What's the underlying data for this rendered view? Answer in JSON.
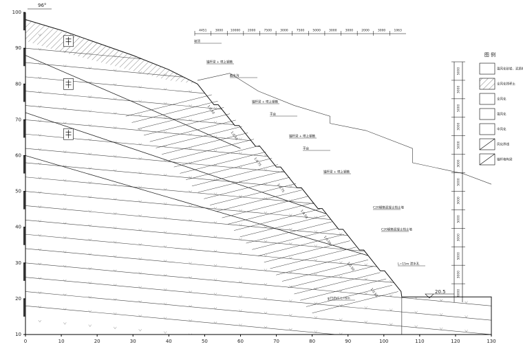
{
  "drawing": {
    "angle_label": "96°",
    "elevation_label": "20.5",
    "x_axis": {
      "ticks": [
        0,
        10,
        20,
        30,
        40,
        50,
        60,
        70,
        80,
        90,
        100,
        110,
        120,
        130
      ]
    },
    "y_axis": {
      "ticks": [
        10,
        20,
        30,
        40,
        50,
        60,
        70,
        80,
        90,
        100
      ]
    },
    "top_dimensions": [
      "4451",
      "3000",
      "10000",
      "2000",
      "7500",
      "3000",
      "7500",
      "5000",
      "3000",
      "3000",
      "2000",
      "3000",
      "1063"
    ],
    "right_dimensions": [
      "5000",
      "3000",
      "5000",
      "3000",
      "5000",
      "3000",
      "5000",
      "3000",
      "5000",
      "3000",
      "5000",
      "3000",
      "6000"
    ],
    "legend": {
      "title": "图 例",
      "items": [
        "强风化砂岩、泥质粉砂岩",
        "全风化残积土",
        "全风化",
        "强风化",
        "中风化",
        "风化界线",
        "锚杆格构梁"
      ]
    },
    "annotations": [
      "坡顶",
      "锚杆梁 + 喷上钢筋",
      "截水沟",
      "锚杆梁 + 喷上钢筋",
      "平台",
      "锚杆梁 + 喷上钢筋",
      "平台",
      "锚杆梁 + 喷上钢筋",
      "C20钢筋混凝土挡土墙",
      "C20钢筋混凝土挡土墙",
      "L=15m 泄水孔",
      "φ75PVC L=6m"
    ],
    "slope_ratios": [
      "1:0.50",
      "1:0.50",
      "1:0.75",
      "1:0.75",
      "1:0.50",
      "1:0.50",
      "1:0.50",
      "1:0.50"
    ]
  }
}
